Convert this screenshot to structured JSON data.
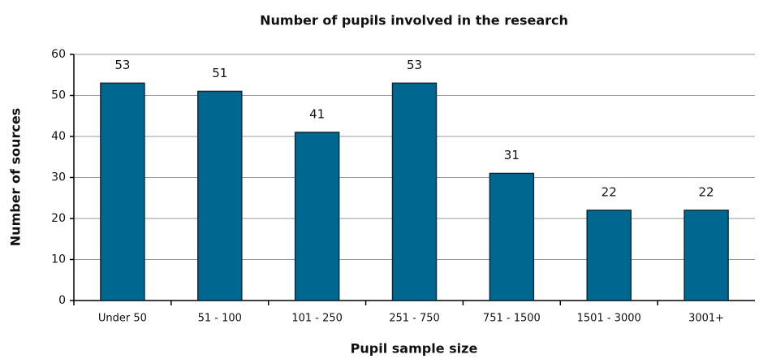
{
  "chart_data": {
    "type": "bar",
    "title": "Number of pupils involved in the research",
    "x_label": "Pupil sample size",
    "y_label": "Number of sources",
    "categories": [
      "Under 50",
      "51 - 100",
      "101 - 250",
      "251 - 750",
      "751 - 1500",
      "1501 - 3000",
      "3001+"
    ],
    "values": [
      53,
      51,
      41,
      53,
      31,
      22,
      22
    ],
    "color": "#006890",
    "ylim": [
      0,
      60
    ],
    "yticks": [
      0,
      10,
      20,
      30,
      40,
      50,
      60
    ],
    "grid": true
  }
}
